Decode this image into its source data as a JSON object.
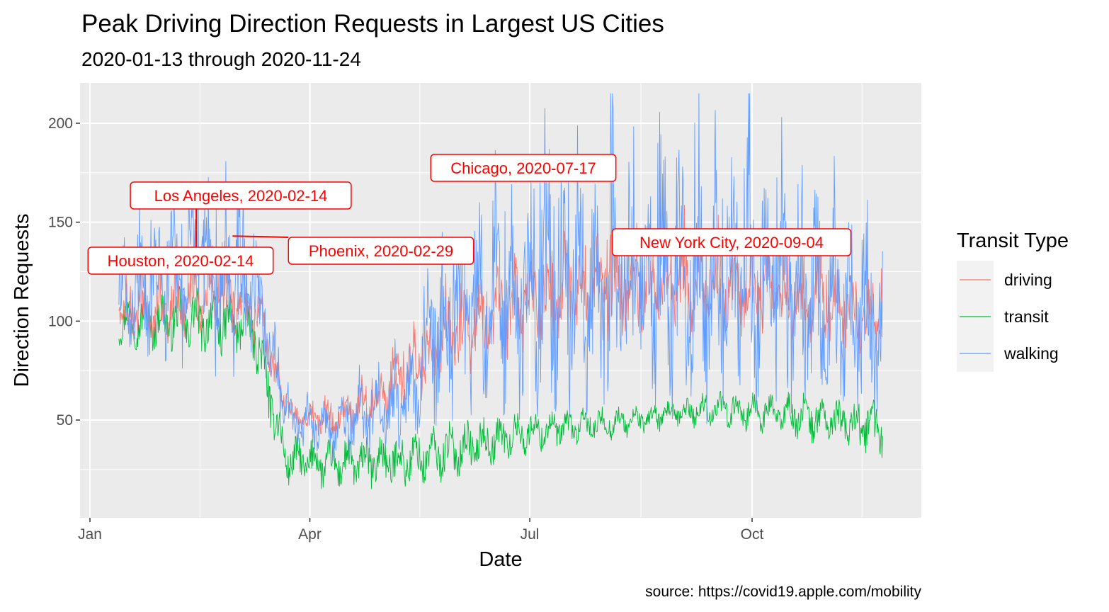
{
  "chart_data": {
    "type": "line",
    "title": "Peak Driving Direction Requests in Largest US Cities",
    "subtitle": "2020-01-13 through 2020-11-24",
    "xlabel": "Date",
    "ylabel": "Direction Requests",
    "caption": "source: https://covid19.apple.com/mobility",
    "x_range": [
      "2020-01-13",
      "2020-11-24"
    ],
    "x_ticks": [
      {
        "date": "2020-01-01",
        "label": "Jan"
      },
      {
        "date": "2020-04-01",
        "label": "Apr"
      },
      {
        "date": "2020-07-01",
        "label": "Jul"
      },
      {
        "date": "2020-10-01",
        "label": "Oct"
      }
    ],
    "ylim": [
      0,
      220
    ],
    "y_ticks": [
      50,
      100,
      150,
      200
    ],
    "grid": true,
    "legend": {
      "title": "Transit Type",
      "position": "right",
      "entries": [
        {
          "name": "driving",
          "color": "#F8766D"
        },
        {
          "name": "transit",
          "color": "#00BA38"
        },
        {
          "name": "walking",
          "color": "#619CFF"
        }
      ]
    },
    "series": [
      {
        "name": "driving",
        "color": "#F8766D",
        "keypoints": [
          {
            "x": "2020-01-13",
            "base": 103,
            "amp": 10
          },
          {
            "x": "2020-02-01",
            "base": 107,
            "amp": 14
          },
          {
            "x": "2020-02-14",
            "base": 113,
            "amp": 16
          },
          {
            "x": "2020-03-05",
            "base": 108,
            "amp": 14
          },
          {
            "x": "2020-03-12",
            "base": 100,
            "amp": 12
          },
          {
            "x": "2020-03-18",
            "base": 72,
            "amp": 10
          },
          {
            "x": "2020-03-25",
            "base": 52,
            "amp": 6
          },
          {
            "x": "2020-04-10",
            "base": 50,
            "amp": 8
          },
          {
            "x": "2020-05-01",
            "base": 62,
            "amp": 12
          },
          {
            "x": "2020-05-15",
            "base": 78,
            "amp": 14
          },
          {
            "x": "2020-06-10",
            "base": 100,
            "amp": 20
          },
          {
            "x": "2020-07-17",
            "base": 118,
            "amp": 22
          },
          {
            "x": "2020-09-04",
            "base": 118,
            "amp": 20
          },
          {
            "x": "2020-10-15",
            "base": 112,
            "amp": 18
          },
          {
            "x": "2020-11-24",
            "base": 103,
            "amp": 16
          }
        ]
      },
      {
        "name": "transit",
        "color": "#00BA38",
        "keypoints": [
          {
            "x": "2020-01-13",
            "base": 100,
            "amp": 10
          },
          {
            "x": "2020-02-14",
            "base": 100,
            "amp": 14
          },
          {
            "x": "2020-03-08",
            "base": 98,
            "amp": 12
          },
          {
            "x": "2020-03-15",
            "base": 65,
            "amp": 14
          },
          {
            "x": "2020-03-22",
            "base": 30,
            "amp": 10
          },
          {
            "x": "2020-04-10",
            "base": 28,
            "amp": 11
          },
          {
            "x": "2020-05-14",
            "base": 30,
            "amp": 12
          },
          {
            "x": "2020-05-20",
            "base": 32,
            "amp": 12
          },
          {
            "x": "2020-07-01",
            "base": 44,
            "amp": 9
          },
          {
            "x": "2020-08-15",
            "base": 50,
            "amp": 6
          },
          {
            "x": "2020-09-15",
            "base": 56,
            "amp": 7
          },
          {
            "x": "2020-10-15",
            "base": 53,
            "amp": 9
          },
          {
            "x": "2020-11-24",
            "base": 46,
            "amp": 12
          }
        ]
      },
      {
        "name": "walking",
        "color": "#619CFF",
        "keypoints": [
          {
            "x": "2020-01-13",
            "base": 110,
            "amp": 20
          },
          {
            "x": "2020-02-14",
            "base": 125,
            "amp": 40
          },
          {
            "x": "2020-03-05",
            "base": 120,
            "amp": 38
          },
          {
            "x": "2020-03-12",
            "base": 105,
            "amp": 22
          },
          {
            "x": "2020-03-18",
            "base": 70,
            "amp": 14
          },
          {
            "x": "2020-03-25",
            "base": 48,
            "amp": 10
          },
          {
            "x": "2020-04-10",
            "base": 45,
            "amp": 12
          },
          {
            "x": "2020-05-14",
            "base": 60,
            "amp": 22
          },
          {
            "x": "2020-05-20",
            "base": 95,
            "amp": 38
          },
          {
            "x": "2020-06-15",
            "base": 110,
            "amp": 45
          },
          {
            "x": "2020-07-17",
            "base": 118,
            "amp": 52
          },
          {
            "x": "2020-09-04",
            "base": 120,
            "amp": 55
          },
          {
            "x": "2020-10-15",
            "base": 115,
            "amp": 48
          },
          {
            "x": "2020-11-24",
            "base": 100,
            "amp": 40
          }
        ]
      }
    ],
    "annotations": [
      {
        "label": "Los Angeles, 2020-02-14",
        "point": {
          "x": "2020-02-14",
          "y": 146
        }
      },
      {
        "label": "Houston, 2020-02-14",
        "point": {
          "x": "2020-02-14",
          "y": 146
        }
      },
      {
        "label": "Phoenix, 2020-02-29",
        "point": {
          "x": "2020-02-29",
          "y": 143
        }
      },
      {
        "label": "Chicago, 2020-07-17",
        "point": {
          "x": "2020-07-17",
          "y": 173
        }
      },
      {
        "label": "New York City, 2020-09-04",
        "point": {
          "x": "2020-09-04",
          "y": 145
        }
      }
    ]
  }
}
